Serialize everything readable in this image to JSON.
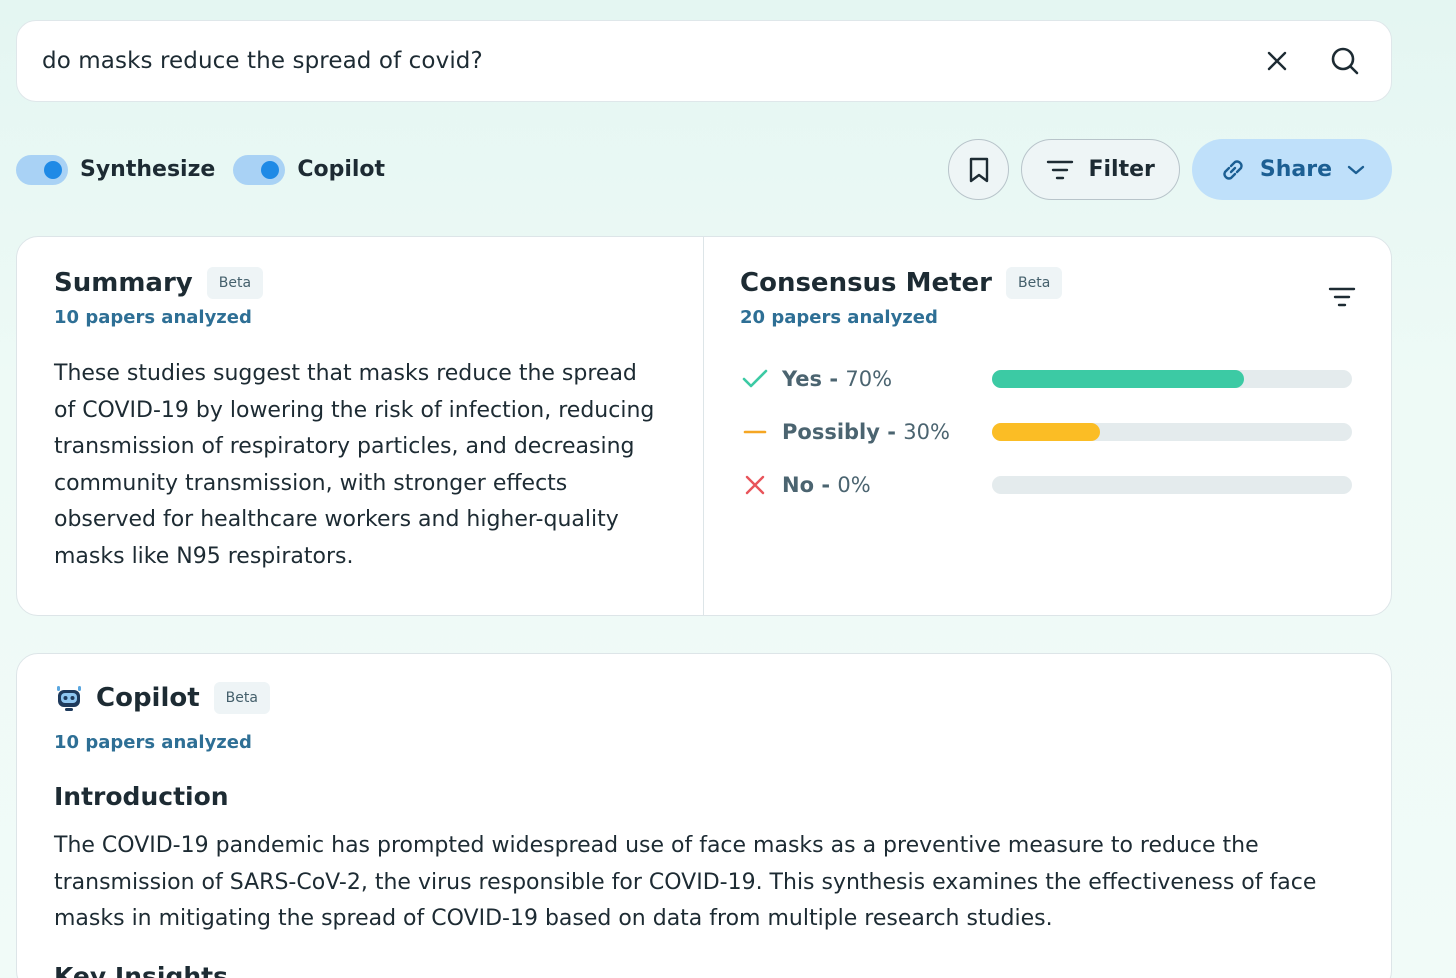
{
  "search": {
    "query": "do masks reduce the spread of covid?"
  },
  "controls": {
    "toggles": [
      {
        "label": "Synthesize",
        "on": true
      },
      {
        "label": "Copilot",
        "on": true
      }
    ],
    "filter_label": "Filter",
    "share_label": "Share"
  },
  "summary": {
    "title": "Summary",
    "badge": "Beta",
    "papers": "10 papers analyzed",
    "text": "These studies suggest that masks reduce the spread of COVID-19 by lowering the risk of infection, reducing transmission of respiratory particles, and decreasing community transmission, with stronger effects observed for healthcare workers and higher-quality masks like N95 respirators."
  },
  "consensus": {
    "title": "Consensus Meter",
    "badge": "Beta",
    "papers": "20 papers analyzed",
    "rows": [
      {
        "label": "Yes",
        "pct_text": "70%",
        "value": 70,
        "color": "#3ccaa4",
        "icon": "check-icon",
        "icon_color": "#3ccaa4"
      },
      {
        "label": "Possibly",
        "pct_text": "30%",
        "value": 30,
        "color": "#fbbd25",
        "icon": "dash-icon",
        "icon_color": "#f5a623"
      },
      {
        "label": "No",
        "pct_text": "0%",
        "value": 0,
        "color": "#e8545a",
        "icon": "x-icon",
        "icon_color": "#e8545a"
      }
    ]
  },
  "copilot": {
    "title": "Copilot",
    "badge": "Beta",
    "papers": "10 papers analyzed",
    "section_title": "Introduction",
    "text": "The COVID-19 pandemic has prompted widespread use of face masks as a preventive measure to reduce the transmission of SARS-CoV-2, the virus responsible for COVID-19. This synthesis examines the effectiveness of face masks in mitigating the spread of COVID-19 based on data from multiple research studies.",
    "next_section_partial": "Key Insights"
  }
}
